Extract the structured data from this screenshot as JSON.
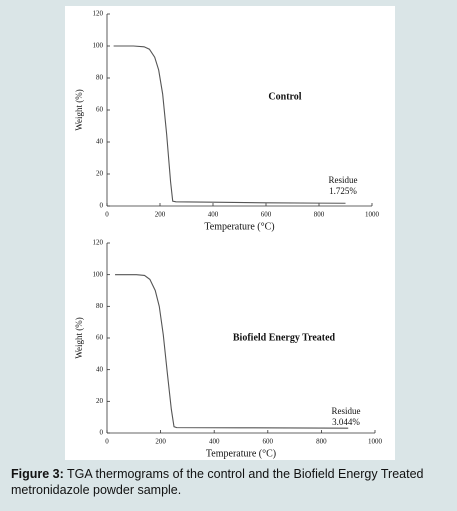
{
  "chart_data": [
    {
      "type": "line",
      "title": "Control",
      "x_label": "Temperature (°C)",
      "y_label": "Weight (%)",
      "x": [
        25,
        100,
        140,
        160,
        180,
        195,
        210,
        225,
        240,
        248,
        260,
        400,
        600,
        800,
        900
      ],
      "series": [
        {
          "color": "#555555",
          "values": [
            100,
            100,
            99.5,
            98,
            93,
            85,
            70,
            45,
            15,
            3,
            2.6,
            2.4,
            2.0,
            1.8,
            1.725
          ]
        }
      ],
      "annotations": [
        "Residue",
        "1.725%"
      ],
      "xlim": [
        0,
        1000
      ],
      "xticks": [
        0,
        200,
        400,
        600,
        800,
        1000
      ],
      "ylim": [
        0,
        120
      ],
      "yticks": [
        0,
        20,
        40,
        60,
        80,
        100,
        120
      ]
    },
    {
      "type": "line",
      "title": "Biofield Energy Treated",
      "x_label": "Temperature (°C)",
      "y_label": "Weight (%)",
      "x": [
        30,
        110,
        140,
        160,
        180,
        195,
        210,
        225,
        240,
        250,
        260,
        500,
        800,
        900
      ],
      "series": [
        {
          "color": "#555555",
          "values": [
            100,
            100,
            99.5,
            97,
            90,
            80,
            62,
            38,
            15,
            4,
            3.4,
            3.3,
            3.1,
            3.044
          ]
        }
      ],
      "annotations": [
        "Residue",
        "3.044%"
      ],
      "xlim": [
        0,
        1000
      ],
      "xticks": [
        0,
        200,
        400,
        600,
        800,
        1000
      ],
      "ylim": [
        0,
        120
      ],
      "yticks": [
        0,
        20,
        40,
        60,
        80,
        100,
        120
      ]
    }
  ],
  "caption": {
    "label": "Figure 3:",
    "text": "TGA thermograms of the control and the Biofield Energy Treated metronidazole powder sample."
  }
}
